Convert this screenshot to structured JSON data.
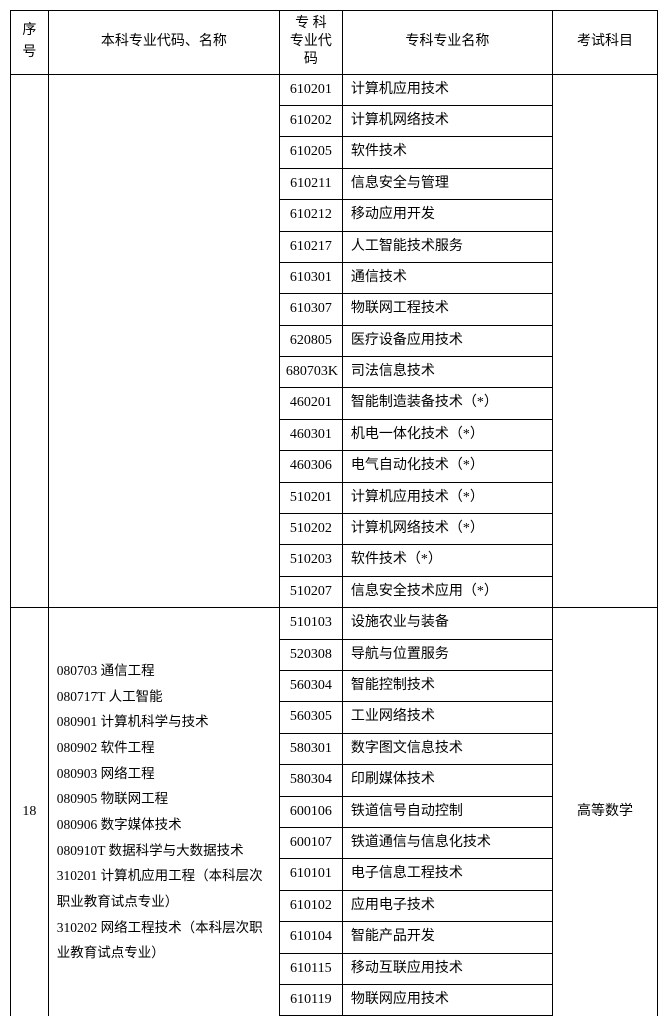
{
  "headers": {
    "seq": "序号",
    "major": "本科专业代码、名称",
    "code_top": "专 科",
    "code_bottom": "专业代码",
    "name": "专科专业名称",
    "exam": "考试科目"
  },
  "group1": {
    "rows": [
      {
        "code": "610201",
        "name": "计算机应用技术"
      },
      {
        "code": "610202",
        "name": "计算机网络技术"
      },
      {
        "code": "610205",
        "name": "软件技术"
      },
      {
        "code": "610211",
        "name": "信息安全与管理"
      },
      {
        "code": "610212",
        "name": "移动应用开发"
      },
      {
        "code": "610217",
        "name": "人工智能技术服务"
      },
      {
        "code": "610301",
        "name": "通信技术"
      },
      {
        "code": "610307",
        "name": "物联网工程技术"
      },
      {
        "code": "620805",
        "name": "医疗设备应用技术"
      },
      {
        "code": "680703K",
        "name": "司法信息技术"
      },
      {
        "code": "460201",
        "name": "智能制造装备技术（*）"
      },
      {
        "code": "460301",
        "name": "机电一体化技术（*）"
      },
      {
        "code": "460306",
        "name": "电气自动化技术（*）"
      },
      {
        "code": "510201",
        "name": "计算机应用技术（*）"
      },
      {
        "code": "510202",
        "name": "计算机网络技术（*）"
      },
      {
        "code": "510203",
        "name": "软件技术（*）"
      },
      {
        "code": "510207",
        "name": "信息安全技术应用（*）"
      }
    ]
  },
  "group2": {
    "seq": "18",
    "majors": [
      "080703  通信工程",
      "080717T 人工智能",
      "080901  计算机科学与技术",
      "080902  软件工程",
      "080903  网络工程",
      "080905  物联网工程",
      "080906  数字媒体技术",
      "080910T 数据科学与大数据技术",
      "310201  计算机应用工程（本科层次职业教育试点专业）",
      "310202 网络工程技术（本科层次职业教育试点专业）"
    ],
    "exam": "高等数学",
    "rows": [
      {
        "code": "510103",
        "name": "设施农业与装备"
      },
      {
        "code": "520308",
        "name": "导航与位置服务"
      },
      {
        "code": "560304",
        "name": "智能控制技术"
      },
      {
        "code": "560305",
        "name": "工业网络技术"
      },
      {
        "code": "580301",
        "name": "数字图文信息技术"
      },
      {
        "code": "580304",
        "name": "印刷媒体技术"
      },
      {
        "code": "600106",
        "name": "铁道信号自动控制"
      },
      {
        "code": "600107",
        "name": "铁道通信与信息化技术"
      },
      {
        "code": "610101",
        "name": "电子信息工程技术"
      },
      {
        "code": "610102",
        "name": "应用电子技术"
      },
      {
        "code": "610104",
        "name": "智能产品开发"
      },
      {
        "code": "610115",
        "name": "移动互联应用技术"
      },
      {
        "code": "610119",
        "name": "物联网应用技术"
      }
    ]
  },
  "style": {
    "font_family": "SimSun",
    "base_font_size_pt": 10.5,
    "border_color": "#000000",
    "background_color": "#ffffff",
    "text_color": "#000000"
  }
}
